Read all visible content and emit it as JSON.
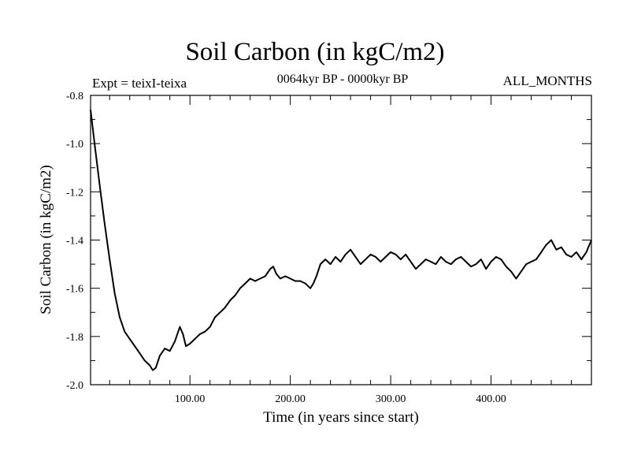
{
  "chart_data": {
    "type": "line",
    "title": "Soil Carbon (in kgC/m2)",
    "subtitle": "0064kyr BP - 0000kyr BP",
    "left_label": "Expt = teixI-teixa",
    "right_label": "ALL_MONTHS",
    "xlabel": "Time (in years since start)",
    "ylabel": "Soil Carbon (in kgC/m2)",
    "xlim": [
      1,
      500
    ],
    "ylim": [
      -2.0,
      -0.8
    ],
    "x_ticks": [
      100,
      200,
      300,
      400
    ],
    "x_tick_labels": [
      "100.00",
      "200.00",
      "300.00",
      "400.00"
    ],
    "y_ticks": [
      -2.0,
      -1.8,
      -1.6,
      -1.4,
      -1.2,
      -1.0,
      -0.8
    ],
    "y_tick_labels": [
      "-2.0",
      "-1.8",
      "-1.6",
      "-1.4",
      "-1.2",
      "-1.0",
      "-0.8"
    ],
    "grid": false,
    "line_color": "#000000",
    "series": [
      {
        "x": [
          1,
          5,
          10,
          15,
          20,
          25,
          30,
          35,
          40,
          45,
          50,
          55,
          60,
          63,
          66,
          70,
          75,
          80,
          85,
          90,
          93,
          96,
          100,
          105,
          110,
          115,
          120,
          125,
          130,
          135,
          140,
          145,
          150,
          155,
          160,
          165,
          170,
          175,
          180,
          183,
          186,
          190,
          195,
          200,
          205,
          210,
          215,
          220,
          223,
          226,
          230,
          235,
          240,
          245,
          250,
          255,
          260,
          265,
          270,
          275,
          280,
          285,
          290,
          295,
          300,
          305,
          310,
          315,
          320,
          325,
          330,
          335,
          340,
          345,
          350,
          355,
          360,
          365,
          370,
          375,
          380,
          385,
          390,
          395,
          400,
          405,
          410,
          415,
          420,
          425,
          430,
          435,
          440,
          445,
          450,
          455,
          460,
          465,
          470,
          475,
          480,
          485,
          490,
          495,
          500
        ],
        "y": [
          -0.86,
          -1.0,
          -1.17,
          -1.33,
          -1.48,
          -1.62,
          -1.72,
          -1.78,
          -1.81,
          -1.84,
          -1.87,
          -1.9,
          -1.92,
          -1.94,
          -1.93,
          -1.88,
          -1.85,
          -1.86,
          -1.82,
          -1.76,
          -1.79,
          -1.84,
          -1.83,
          -1.81,
          -1.79,
          -1.78,
          -1.76,
          -1.72,
          -1.7,
          -1.68,
          -1.65,
          -1.63,
          -1.6,
          -1.58,
          -1.56,
          -1.57,
          -1.56,
          -1.55,
          -1.52,
          -1.51,
          -1.54,
          -1.56,
          -1.55,
          -1.56,
          -1.57,
          -1.57,
          -1.58,
          -1.6,
          -1.58,
          -1.55,
          -1.5,
          -1.48,
          -1.5,
          -1.47,
          -1.49,
          -1.46,
          -1.44,
          -1.47,
          -1.5,
          -1.48,
          -1.46,
          -1.47,
          -1.49,
          -1.47,
          -1.45,
          -1.46,
          -1.48,
          -1.46,
          -1.49,
          -1.52,
          -1.5,
          -1.48,
          -1.49,
          -1.5,
          -1.47,
          -1.49,
          -1.5,
          -1.48,
          -1.47,
          -1.49,
          -1.51,
          -1.5,
          -1.48,
          -1.52,
          -1.49,
          -1.47,
          -1.48,
          -1.51,
          -1.53,
          -1.56,
          -1.53,
          -1.5,
          -1.49,
          -1.48,
          -1.45,
          -1.42,
          -1.4,
          -1.44,
          -1.43,
          -1.46,
          -1.47,
          -1.45,
          -1.48,
          -1.45,
          -1.4
        ]
      }
    ]
  }
}
